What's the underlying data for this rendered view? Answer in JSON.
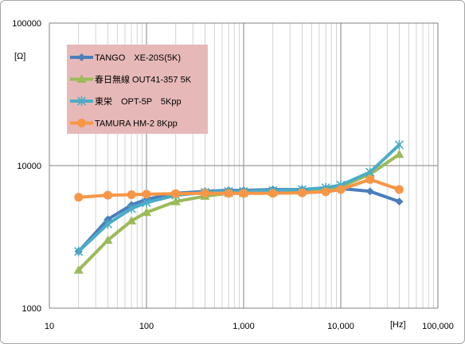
{
  "chart_data": {
    "type": "line",
    "xscale": "log",
    "yscale": "log",
    "xlim": [
      10,
      100000
    ],
    "ylim": [
      1000,
      100000
    ],
    "x_tick_labels": [
      "10",
      "100",
      "1,000",
      "10,000",
      "100,000"
    ],
    "y_tick_labels": [
      "1000",
      "10000",
      "100000"
    ],
    "xlabel": "[Hz]",
    "ylabel": "[Ω]",
    "grid": "major and minor",
    "legend_position": "top-left",
    "series": [
      {
        "name": "TANGO　XE-20S(5K)",
        "color": "#4a7ebb",
        "marker": "diamond",
        "x": [
          20,
          40,
          70,
          100,
          200,
          400,
          700,
          1000,
          2000,
          4000,
          7000,
          10000,
          20000,
          40000
        ],
        "y": [
          2500,
          4200,
          5300,
          5800,
          6400,
          6600,
          6700,
          6700,
          6800,
          6800,
          6900,
          6900,
          6600,
          5600
        ]
      },
      {
        "name": "春日無線 OUT41-357 5K",
        "color": "#9bbb59",
        "marker": "triangle",
        "x": [
          20,
          40,
          70,
          100,
          200,
          400,
          700,
          1000,
          2000,
          4000,
          7000,
          10000,
          20000,
          40000
        ],
        "y": [
          1850,
          3000,
          4100,
          4700,
          5600,
          6100,
          6400,
          6400,
          6500,
          6600,
          6800,
          7100,
          8700,
          12000
        ]
      },
      {
        "name": "東栄　OPT-5P　5Kpp",
        "color": "#4bacc6",
        "marker": "star",
        "x": [
          20,
          40,
          70,
          100,
          200,
          400,
          700,
          1000,
          2000,
          4000,
          7000,
          10000,
          20000,
          40000
        ],
        "y": [
          2500,
          3900,
          5000,
          5500,
          6200,
          6500,
          6600,
          6600,
          6700,
          6800,
          7000,
          7300,
          9000,
          14000
        ]
      },
      {
        "name": "TAMURA HM-2 8Kpp",
        "color": "#f79646",
        "marker": "circle",
        "x": [
          20,
          40,
          70,
          100,
          200,
          400,
          700,
          1000,
          2000,
          4000,
          7000,
          10000,
          20000,
          40000
        ],
        "y": [
          6000,
          6200,
          6250,
          6300,
          6350,
          6400,
          6400,
          6400,
          6400,
          6450,
          6550,
          6800,
          8000,
          6800
        ]
      }
    ]
  }
}
